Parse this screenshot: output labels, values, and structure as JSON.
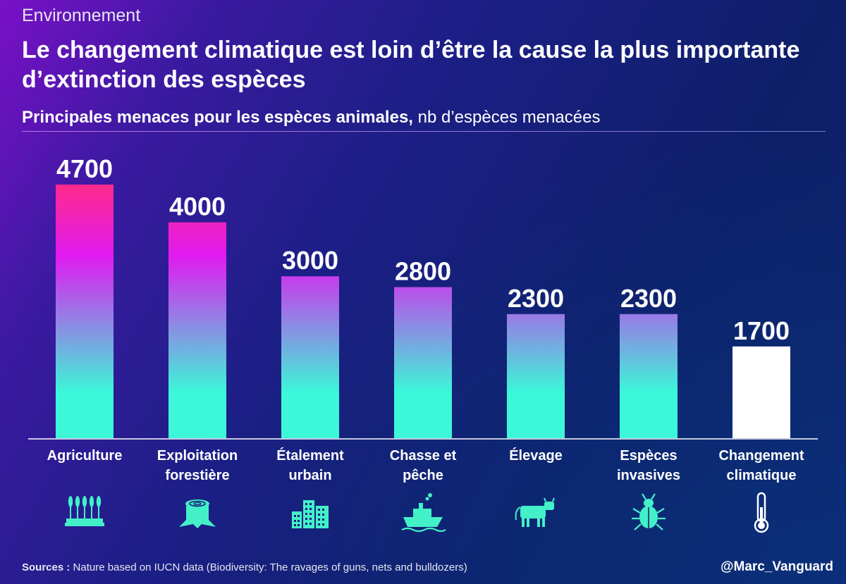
{
  "header": {
    "kicker": "Environnement",
    "title": "Le changement climatique est loin d’être la cause la plus importante d’extinction des espèces",
    "subtitle_bold": "Principales menaces pour les espèces animales,",
    "subtitle_rest": " nb d’espèces menacées"
  },
  "chart_data": {
    "type": "bar",
    "title": "Principales menaces pour les espèces animales, nb d’espèces menacées",
    "categories": [
      [
        "Agriculture"
      ],
      [
        "Exploitation",
        "forestière"
      ],
      [
        "Étalement",
        "urbain"
      ],
      [
        "Chasse et",
        "pêche"
      ],
      [
        "Élevage"
      ],
      [
        "Espèces",
        "invasives"
      ],
      [
        "Changement",
        "climatique"
      ]
    ],
    "values": [
      4700,
      4000,
      3000,
      2800,
      2300,
      2300,
      1700
    ],
    "icons": [
      "wheat-icon",
      "tree-stump-icon",
      "buildings-icon",
      "boat-icon",
      "cow-icon",
      "beetle-icon",
      "thermometer-icon"
    ],
    "highlight_index": 6,
    "ylim": [
      0,
      4700
    ],
    "xlabel": "",
    "ylabel": "",
    "colors": {
      "gradient_top": "#ff2a8c",
      "gradient_mid": "#e01af0",
      "gradient_bottom": "#3cf7d8",
      "highlight": "#ffffff",
      "icon": "#43f0c8"
    }
  },
  "footer": {
    "sources_label": "Sources :",
    "sources_text": " Nature based on IUCN data (Biodiversity: The ravages of guns, nets and bulldozers)",
    "handle": "@Marc_Vanguard"
  }
}
